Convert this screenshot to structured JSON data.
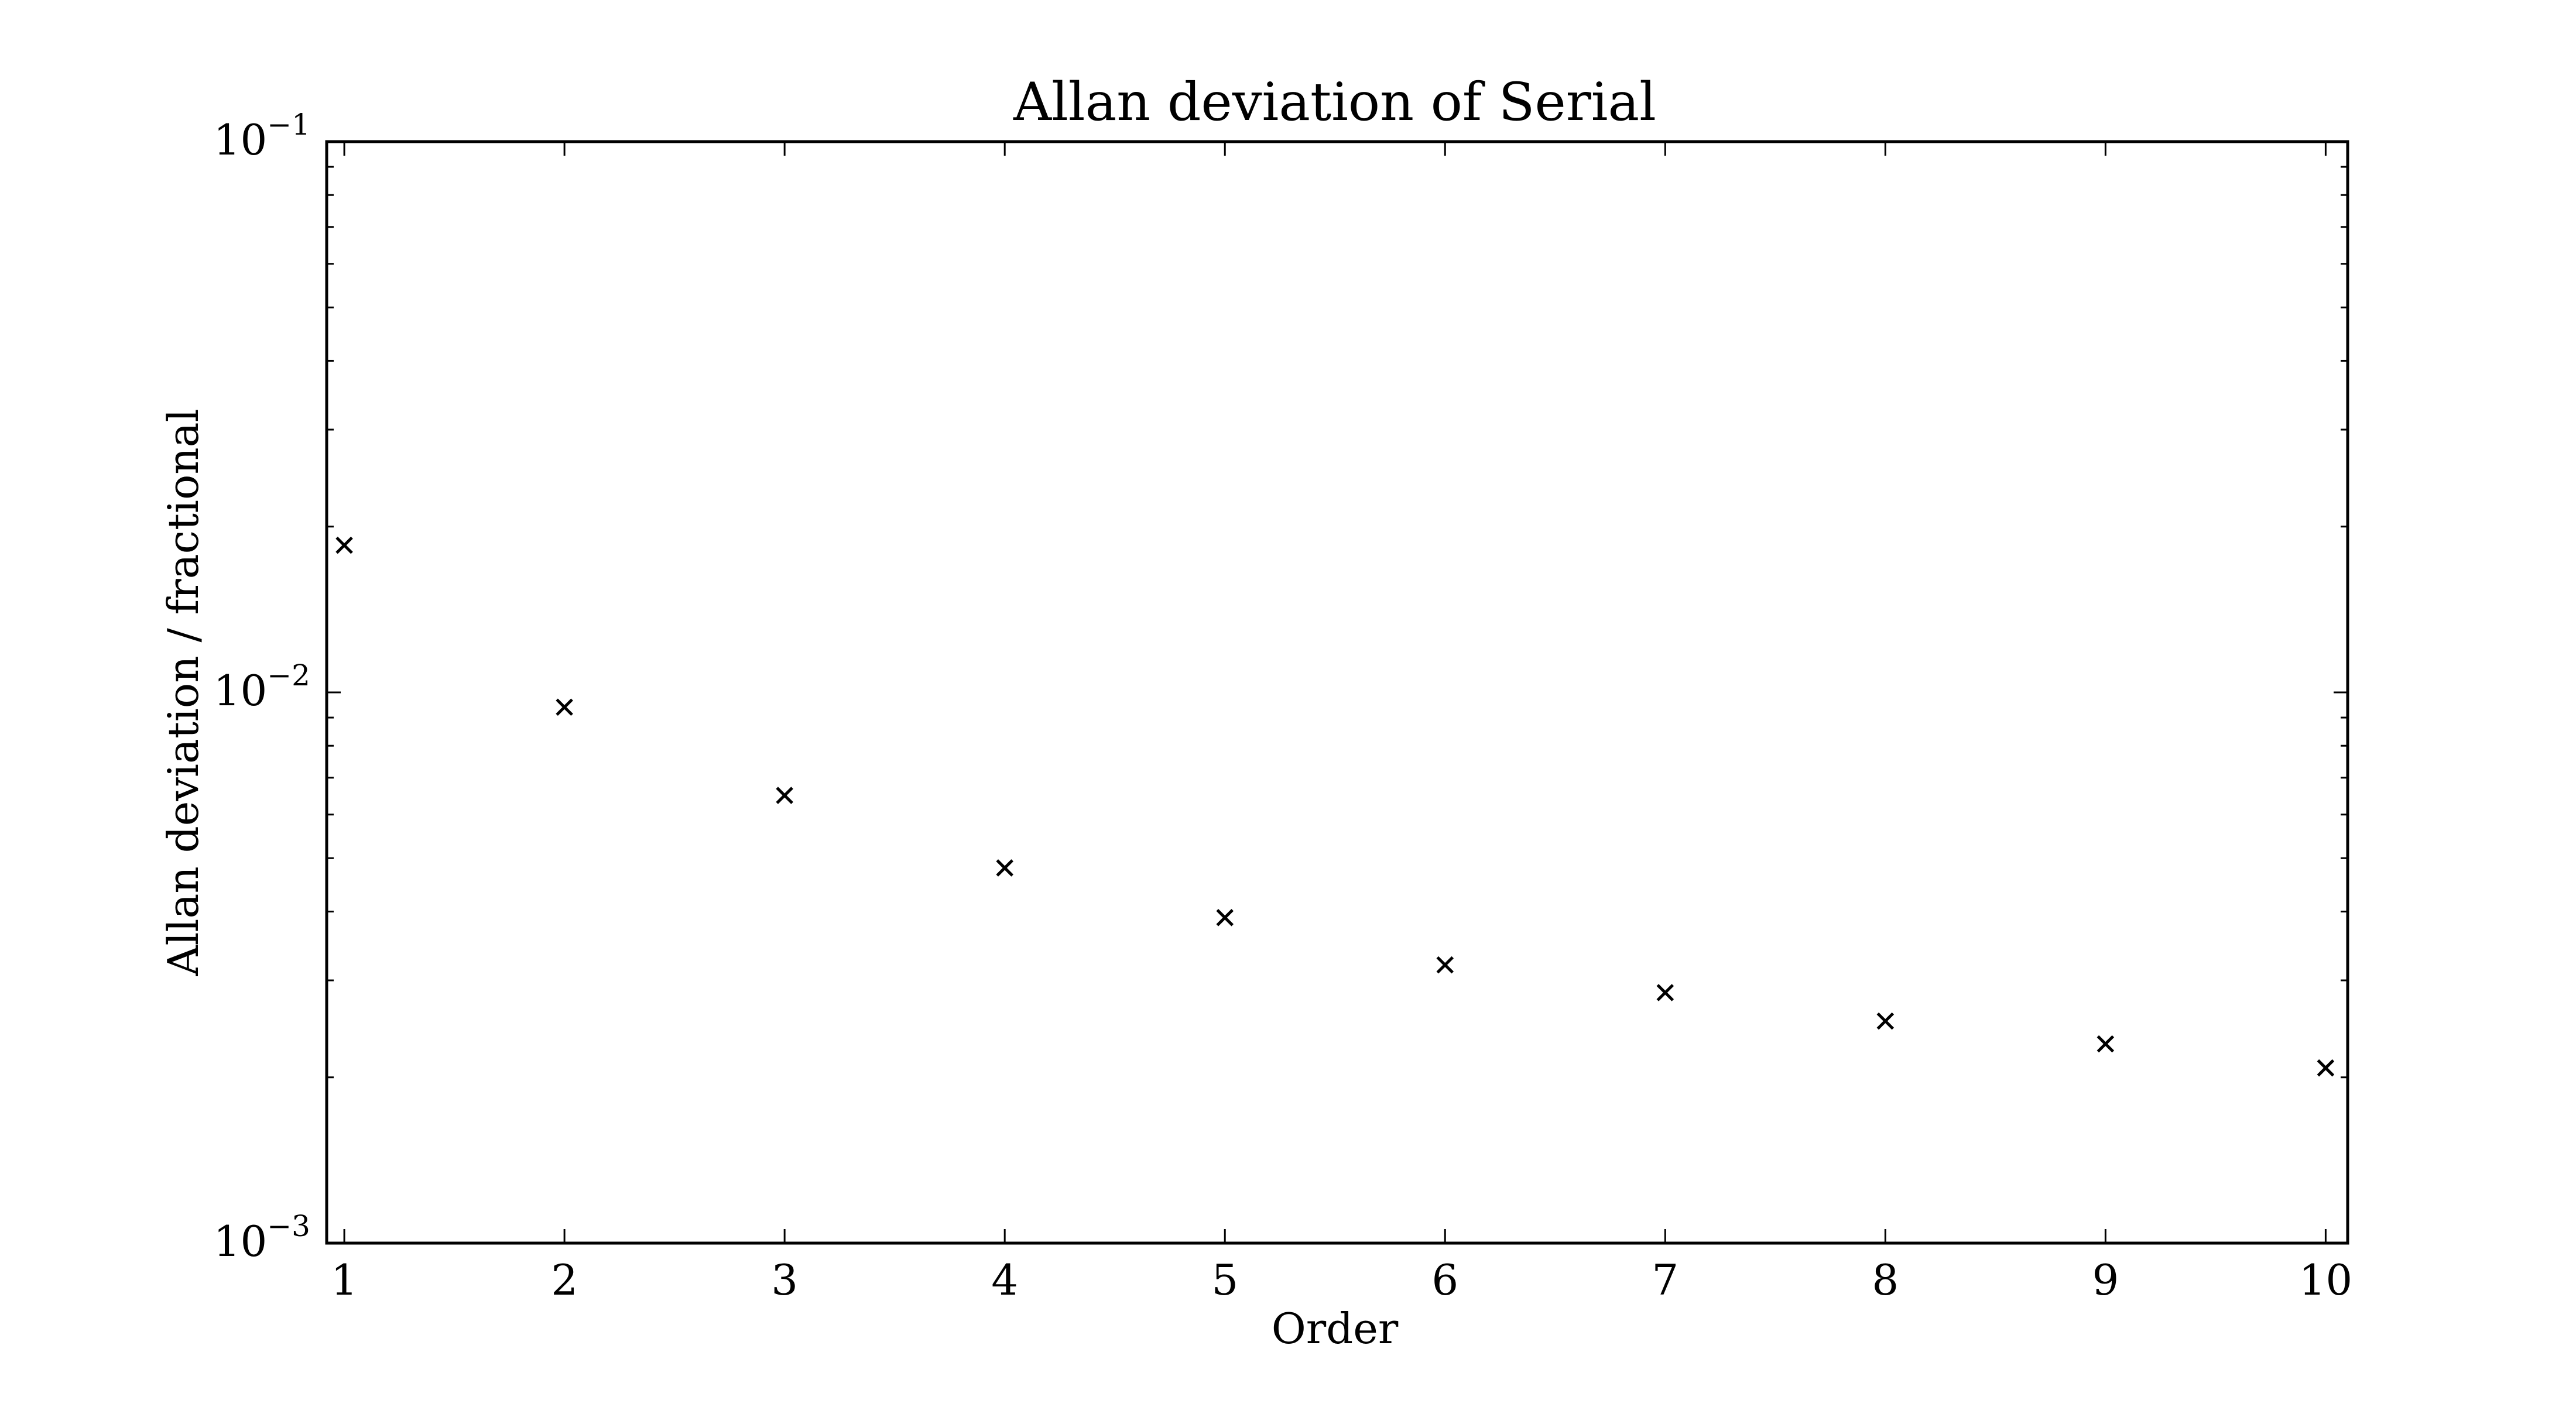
{
  "chart_data": {
    "type": "scatter",
    "title": "Allan deviation of Serial",
    "xlabel": "Order",
    "ylabel": "Allan deviation / fractional",
    "xlim": [
      0.92,
      10.1
    ],
    "ylim": [
      0.001,
      0.1
    ],
    "yscale": "log",
    "grid": false,
    "marker": "x",
    "x_ticks": [
      1,
      2,
      3,
      4,
      5,
      6,
      7,
      8,
      9,
      10
    ],
    "y_ticks": [
      {
        "value": 0.1,
        "base": "10",
        "exp": "−1"
      },
      {
        "value": 0.01,
        "base": "10",
        "exp": "−2"
      },
      {
        "value": 0.001,
        "base": "10",
        "exp": "−3"
      }
    ],
    "series": [
      {
        "color": "#000000",
        "x": [
          1,
          2,
          3,
          4,
          5,
          6,
          7,
          8,
          9,
          10
        ],
        "y": [
          0.0185,
          0.0094,
          0.0065,
          0.0048,
          0.0039,
          0.0032,
          0.00285,
          0.00253,
          0.0023,
          0.00208
        ]
      }
    ]
  }
}
